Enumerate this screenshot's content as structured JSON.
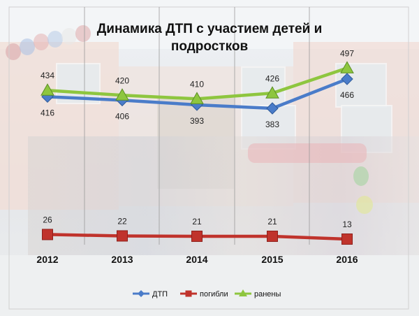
{
  "chart_data": {
    "type": "line",
    "title_lines": [
      "Динамика ДТП с участием детей и",
      "подростков"
    ],
    "categories": [
      "2012",
      "2013",
      "2014",
      "2015",
      "2016"
    ],
    "series": [
      {
        "name": "ДТП",
        "values": [
          416,
          406,
          393,
          383,
          466
        ],
        "color": "#4a7cc9",
        "marker": "diamond",
        "label_position": "below"
      },
      {
        "name": "погибли",
        "values": [
          26,
          22,
          21,
          21,
          13
        ],
        "color": "#c0332c",
        "marker": "square",
        "label_position": "above"
      },
      {
        "name": "ранены",
        "values": [
          434,
          420,
          410,
          426,
          497
        ],
        "color": "#8ec63f",
        "marker": "triangle",
        "label_position": "above"
      }
    ],
    "ylim": [
      0,
      500
    ],
    "grid": "vertical",
    "legend_position": "bottom",
    "xlabel": "",
    "ylabel": ""
  }
}
